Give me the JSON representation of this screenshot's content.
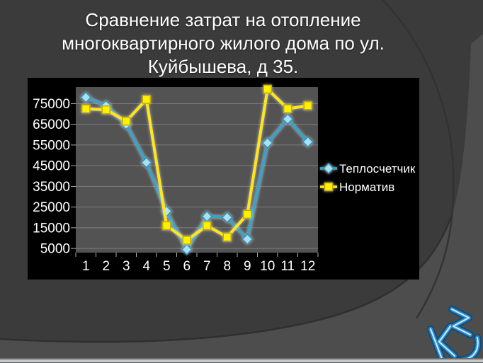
{
  "slide": {
    "title_lines": [
      "Сравнение затрат на отопление",
      "многоквартирного жилого дома по ул.",
      "Куйбышева, д 35."
    ],
    "logo_text": "КС",
    "background_color": "#3B3B3B",
    "chart_background": "#000000"
  },
  "chart_data": {
    "type": "line",
    "title": "",
    "xlabel": "",
    "ylabel": "",
    "categories": [
      "1",
      "2",
      "3",
      "4",
      "5",
      "6",
      "7",
      "8",
      "9",
      "10",
      "11",
      "12"
    ],
    "series": [
      {
        "name": "Теплосчетчик",
        "marker": "diamond",
        "color": "#38A3C6",
        "marker_fill": "#A8E1F6",
        "marker_stroke": "#2D8FB2",
        "values": [
          78000,
          74000,
          65000,
          46500,
          23000,
          4500,
          20500,
          20000,
          9500,
          56000,
          67500,
          56500
        ]
      },
      {
        "name": "Норматив",
        "marker": "square",
        "color": "#FFE614",
        "marker_fill": "#FFF200",
        "marker_stroke": "#C7A900",
        "values": [
          72500,
          72000,
          66500,
          77000,
          16000,
          9000,
          16000,
          10500,
          21500,
          82000,
          72500,
          74000
        ]
      }
    ],
    "y_ticks": [
      5000,
      15000,
      25000,
      35000,
      45000,
      55000,
      65000,
      75000
    ],
    "ylim": [
      3000,
      83000
    ],
    "grid": true,
    "legend_position": "right",
    "plot_bg": "#535353",
    "grid_color": "#7C7C7C",
    "tick_color": "#ADADAD",
    "text_color": "#FFFFFF"
  }
}
